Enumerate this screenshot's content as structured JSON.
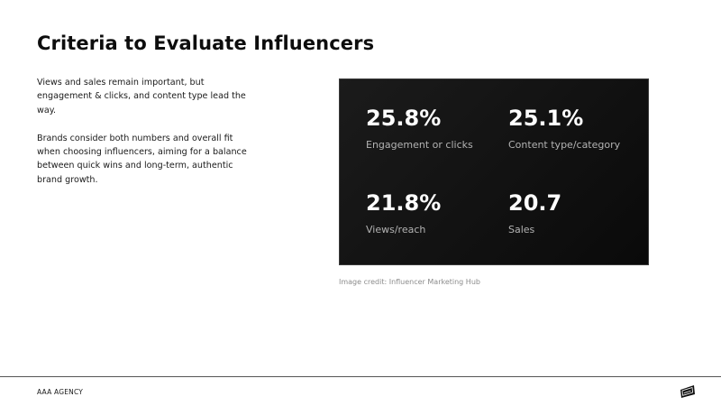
{
  "title": "Criteria to Evaluate Influencers",
  "body": {
    "paragraph_1": "Views and sales remain important, but engagement & clicks, and content type lead the way.",
    "paragraph_2": "Brands consider both numbers and overall fit when choosing influencers, aiming for a balance between quick wins and long-term, authentic brand growth."
  },
  "stats": [
    {
      "value": "25.8%",
      "label": "Engagement or clicks"
    },
    {
      "value": "25.1%",
      "label": "Content type/category"
    },
    {
      "value": "21.8%",
      "label": "Views/reach"
    },
    {
      "value": "20.7",
      "label": "Sales"
    }
  ],
  "credit": "Image credit: Influencer Marketing Hub",
  "footer": {
    "agency": "AAA AGENCY",
    "logo_icon": "agency-logo-icon"
  },
  "colors": {
    "panel_background": "#111111",
    "stat_value": "#ffffff",
    "stat_label": "#b3b3b3"
  }
}
